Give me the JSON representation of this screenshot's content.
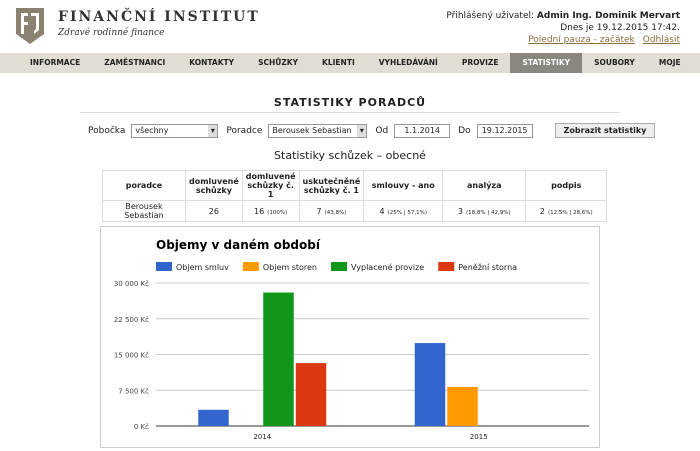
{
  "header": {
    "brand": "FINANČNÍ INSTITUT",
    "tagline": "Zdravé rodinné finance",
    "user_label": "Přihlášený uživatel:",
    "user_name": "Admin Ing. Dominik Mervart",
    "date": "Dnes je 19.12.2015 17:42.",
    "links": [
      "Polední pauza - začátek",
      "Odhlásit"
    ]
  },
  "nav": {
    "items": [
      "INFORMACE",
      "ZAMĚSTNANCI",
      "KONTAKTY",
      "SCHŮZKY",
      "KLIENTI",
      "VYHLEDÁVÁNÍ",
      "PROVIZE",
      "STATISTIKY",
      "SOUBORY",
      "MOJE"
    ],
    "active": 7
  },
  "page_title": "STATISTIKY PORADCŮ",
  "filters": {
    "branch_label": "Pobočka",
    "branch": "všechny",
    "advisor_label": "Poradce",
    "advisor": "Berousek Sebastian",
    "from_label": "Od",
    "from": "1.1.2014",
    "to_label": "Do",
    "to": "19.12.2015",
    "button": "Zobrazit statistiky"
  },
  "table": {
    "title": "Statistiky schůzek – obecné",
    "headers": [
      "poradce",
      "domluvené schůzky",
      "domluvené schůzky č. 1",
      "uskutečněné schůzky č. 1",
      "smlouvy - ano",
      "analýza",
      "podpis"
    ],
    "rows": [
      [
        [
          "Berousek Sebastian"
        ],
        [
          "26"
        ],
        [
          "16",
          "(100%)"
        ],
        [
          "7",
          "(43,8%)"
        ],
        [
          "4",
          "(25% | 57,1%)"
        ],
        [
          "3",
          "(18,8% | 42,9%)"
        ],
        [
          "2",
          "(12,5% | 28,6%)"
        ]
      ]
    ]
  },
  "chart_data": {
    "type": "bar",
    "title": "Objemy v daném období",
    "categories": [
      "2014",
      "2015"
    ],
    "series": [
      {
        "name": "Objem smluv",
        "color": "#3366cc",
        "values": [
          3400,
          17400
        ]
      },
      {
        "name": "Objem storen",
        "color": "#ff9900",
        "values": [
          null,
          8200
        ]
      },
      {
        "name": "Vyplacené provize",
        "color": "#109618",
        "values": [
          28000,
          null
        ]
      },
      {
        "name": "Peněžní storna",
        "color": "#dc3912",
        "values": [
          13200,
          null
        ]
      }
    ],
    "ylim": [
      0,
      30000
    ],
    "yticks": [
      {
        "value": 0,
        "label": "0 Kč"
      },
      {
        "value": 7500,
        "label": "7 500 Kč"
      },
      {
        "value": 15000,
        "label": "15 000 Kč"
      },
      {
        "value": 22500,
        "label": "22 500 Kč"
      },
      {
        "value": 30000,
        "label": "30 000 Kč"
      }
    ],
    "grid": true
  }
}
